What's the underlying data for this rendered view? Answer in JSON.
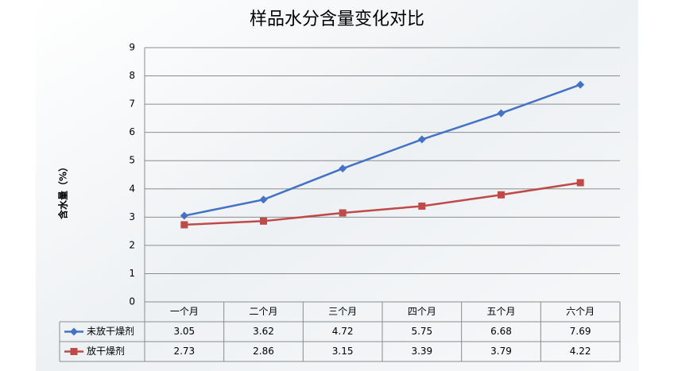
{
  "chart_data": {
    "type": "line",
    "title": "样品水分含量变化对比",
    "y_label": "含水量（%）",
    "categories": [
      "一个月",
      "二个月",
      "三个月",
      "四个月",
      "五个月",
      "六个月"
    ],
    "series": [
      {
        "name": "未放干燥剂",
        "color": "#4472c4",
        "marker": "diamond",
        "values": [
          3.05,
          3.62,
          4.72,
          5.75,
          6.68,
          7.69
        ]
      },
      {
        "name": "放干燥剂",
        "color": "#be4b48",
        "marker": "square",
        "values": [
          2.73,
          2.86,
          3.15,
          3.39,
          3.79,
          4.22
        ]
      }
    ],
    "ylim": [
      0,
      9
    ],
    "yticks": [
      0,
      1,
      2,
      3,
      4,
      5,
      6,
      7,
      8,
      9
    ],
    "grid": true
  }
}
